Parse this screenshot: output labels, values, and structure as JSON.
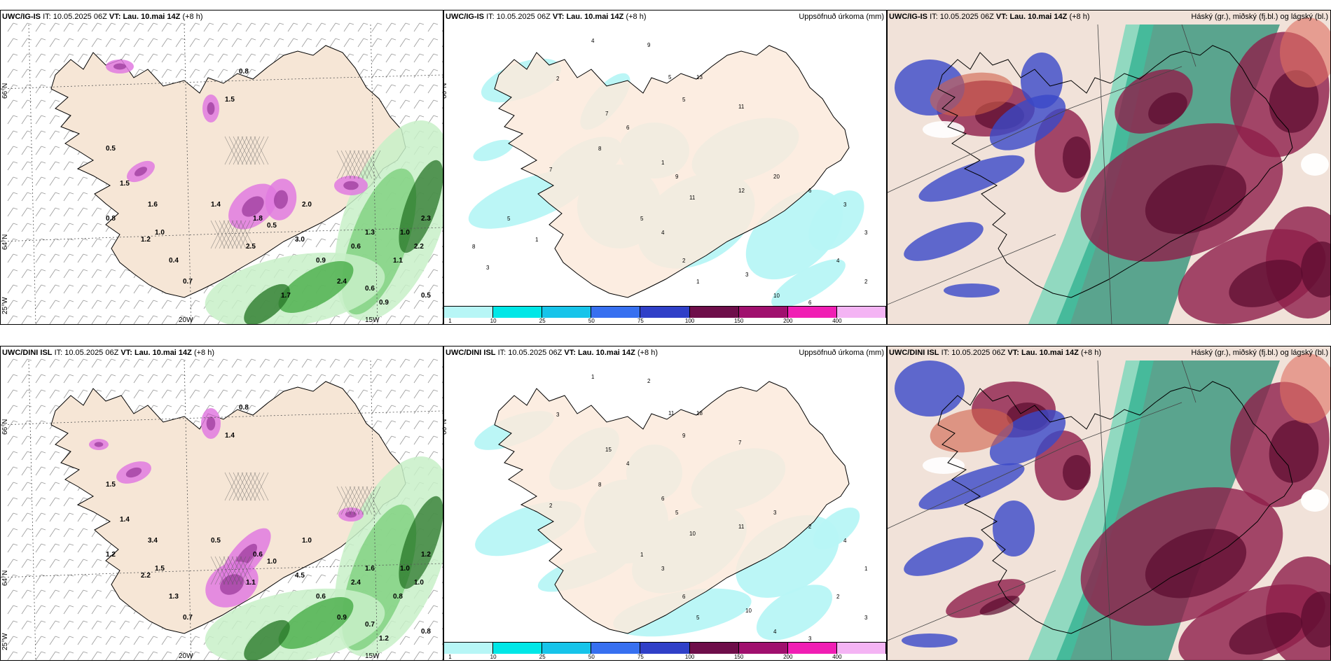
{
  "panels": [
    {
      "model": "UWC/IG-IS",
      "it_label": "IT:",
      "it": "10.05.2025 06Z",
      "vt_label": "VT:",
      "vt": "Lau. 10.mai 14Z",
      "lead": "(+8 h)",
      "right": ""
    },
    {
      "model": "UWC/IG-IS",
      "it_label": "IT:",
      "it": "10.05.2025 06Z",
      "vt_label": "VT:",
      "vt": "Lau. 10.mai 14Z",
      "lead": "(+8 h)",
      "right": "Uppsöfnuð úrkoma (mm)"
    },
    {
      "model": "UWC/IG-IS",
      "it_label": "IT:",
      "it": "10.05.2025 06Z",
      "vt_label": "VT:",
      "vt": "Lau. 10.mai 14Z",
      "lead": "(+8 h)",
      "right": "Háský (gr.), miðský (fj.bl.) og lágský (bl.)"
    },
    {
      "model": "UWC/DINI ISL",
      "it_label": "IT:",
      "it": "10.05.2025 06Z",
      "vt_label": "VT:",
      "vt": "Lau. 10.mai 14Z",
      "lead": "(+8 h)",
      "right": ""
    },
    {
      "model": "UWC/DINI ISL",
      "it_label": "IT:",
      "it": "10.05.2025 06Z",
      "vt_label": "VT:",
      "vt": "Lau. 10.mai 14Z",
      "lead": "(+8 h)",
      "right": "Uppsöfnuð úrkoma (mm)"
    },
    {
      "model": "UWC/DINI ISL",
      "it_label": "IT:",
      "it": "10.05.2025 06Z",
      "vt_label": "VT:",
      "vt": "Lau. 10.mai 14Z",
      "lead": "(+8 h)",
      "right": "Háský (gr.), miðský (fj.bl.) og lágský (bl.)"
    }
  ],
  "axis_labels": {
    "lat_66": "66°N",
    "lat_64": "64°N",
    "lon_25": "25°W",
    "lon_20": "20W",
    "lon_15": "15W"
  },
  "colorbar": {
    "ticks": [
      "1",
      "10",
      "25",
      "50",
      "75",
      "100",
      "150",
      "200",
      "400"
    ],
    "colors": [
      "#b7f6f6",
      "#00e7e7",
      "#17c4ea",
      "#3770f0",
      "#3040c8",
      "#6e0e4a",
      "#a0106e",
      "#f01eb4",
      "#f4b4f4"
    ]
  },
  "precip_values_top": [
    "4",
    "9",
    "2",
    "5",
    "13",
    "5",
    "11",
    "7",
    "6",
    "8",
    "1",
    "9",
    "11",
    "12",
    "20",
    "6",
    "3",
    "5",
    "4",
    "2",
    "1",
    "3",
    "10",
    "6",
    "4",
    "3",
    "2",
    "7",
    "5",
    "8",
    "3",
    "1"
  ],
  "precip_values_bottom": [
    "1",
    "2",
    "3",
    "11",
    "18",
    "9",
    "7",
    "15",
    "4",
    "8",
    "6",
    "5",
    "10",
    "11",
    "3",
    "2",
    "4",
    "1",
    "3",
    "6",
    "5",
    "10",
    "4",
    "3",
    "2",
    "1",
    "3",
    "2"
  ],
  "pressure_values_top": [
    "0.5",
    "0.8",
    "1.5",
    "1.6",
    "0.5",
    "1.3",
    "2.3",
    "1.1",
    "2.2",
    "0.6",
    "0.9",
    "1.4",
    "1.8",
    "2.5",
    "3.0",
    "0.6",
    "1.0",
    "0.5",
    "1.2",
    "0.7",
    "0.4",
    "2.4",
    "0.9",
    "1.0",
    "1.5",
    "0.8",
    "2.0",
    "1.7"
  ],
  "pressure_values_bottom": [
    "1.5",
    "0.8",
    "1.4",
    "3.4",
    "1.0",
    "1.6",
    "1.2",
    "0.8",
    "1.0",
    "0.7",
    "1.2",
    "0.5",
    "0.6",
    "1.1",
    "4.5",
    "2.4",
    "1.0",
    "0.8",
    "2.2",
    "0.7",
    "1.3",
    "0.9",
    "0.6",
    "1.5",
    "1.4",
    "1.2",
    "1.0"
  ]
}
